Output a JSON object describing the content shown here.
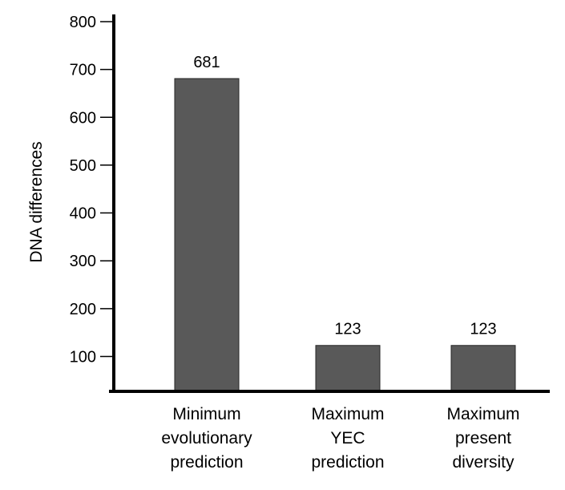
{
  "chart_data": {
    "type": "bar",
    "title": "",
    "xlabel": "",
    "ylabel": "DNA differences",
    "ylim": [
      27,
      800
    ],
    "yticks": [
      100,
      200,
      300,
      400,
      500,
      600,
      700,
      800
    ],
    "ytick_labels": [
      "100",
      "200",
      "300",
      "400",
      "500",
      "600",
      "700",
      "800"
    ],
    "categories": [
      [
        "Minimum",
        "evolutionary",
        "prediction"
      ],
      [
        "Maximum",
        "YEC",
        "prediction"
      ],
      [
        "Maximum",
        "present",
        "diversity"
      ]
    ],
    "values": [
      681,
      123,
      123
    ],
    "value_labels": [
      "681",
      "123",
      "123"
    ],
    "bar_color": "#595959",
    "grid": false,
    "legend": "none"
  }
}
